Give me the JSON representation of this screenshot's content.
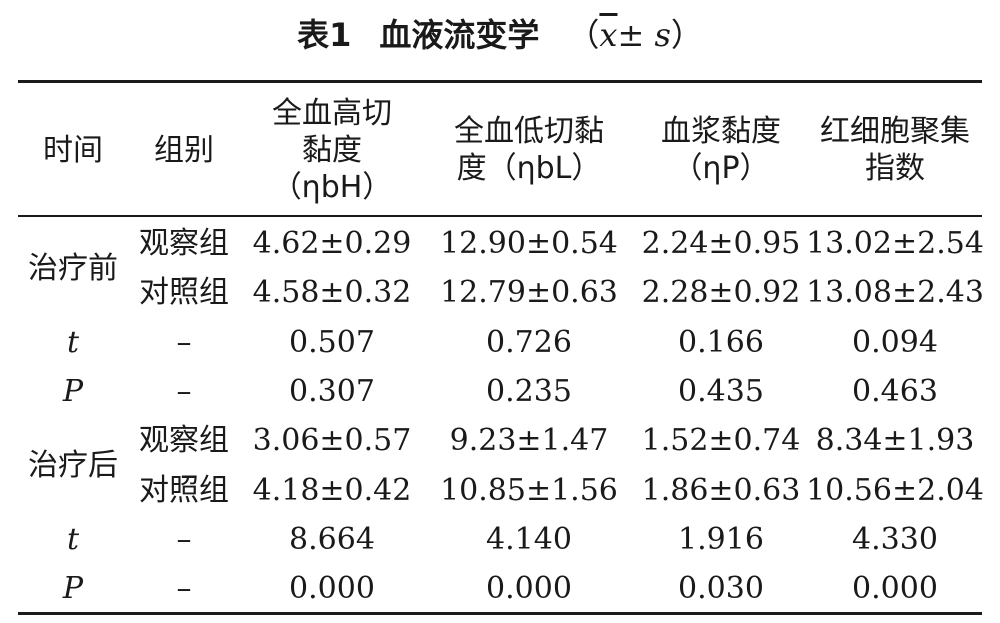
{
  "caption": {
    "number": "表1",
    "title": "血液流变学",
    "stat_open": "（",
    "stat_x": "x",
    "stat_pm": "± ",
    "stat_s": "s",
    "stat_close": "）"
  },
  "headers": {
    "time": "时间",
    "group": "组别",
    "whole_high": "全血高切\n黏度\n（ηbH）",
    "whole_low": "全血低切黏\n度（ηbL）",
    "plasma": "血浆黏度\n（ηP）",
    "rbc_agg": "红细胞聚集\n指数"
  },
  "sections": [
    {
      "period": "治疗前",
      "rows": [
        {
          "label": "观察组",
          "values": [
            "4.62±0.29",
            "12.90±0.54",
            "2.24±0.95",
            "13.02±2.54"
          ]
        },
        {
          "label": "对照组",
          "values": [
            "4.58±0.32",
            "12.79±0.63",
            "2.28±0.92",
            "13.08±2.43"
          ]
        },
        {
          "label": "t",
          "values": [
            "0.507",
            "0.726",
            "0.166",
            "0.094"
          ]
        },
        {
          "label": "P",
          "values": [
            "0.307",
            "0.235",
            "0.435",
            "0.463"
          ]
        }
      ]
    },
    {
      "period": "治疗后",
      "rows": [
        {
          "label": "观察组",
          "values": [
            "3.06±0.57",
            "9.23±1.47",
            "1.52±0.74",
            "8.34±1.93"
          ]
        },
        {
          "label": "对照组",
          "values": [
            "4.18±0.42",
            "10.85±1.56",
            "1.86±0.63",
            "10.56±2.04"
          ]
        },
        {
          "label": "t",
          "values": [
            "8.664",
            "4.140",
            "1.916",
            "4.330"
          ]
        },
        {
          "label": "P",
          "values": [
            "0.000",
            "0.000",
            "0.030",
            "0.000"
          ]
        }
      ]
    }
  ],
  "dash": "–"
}
